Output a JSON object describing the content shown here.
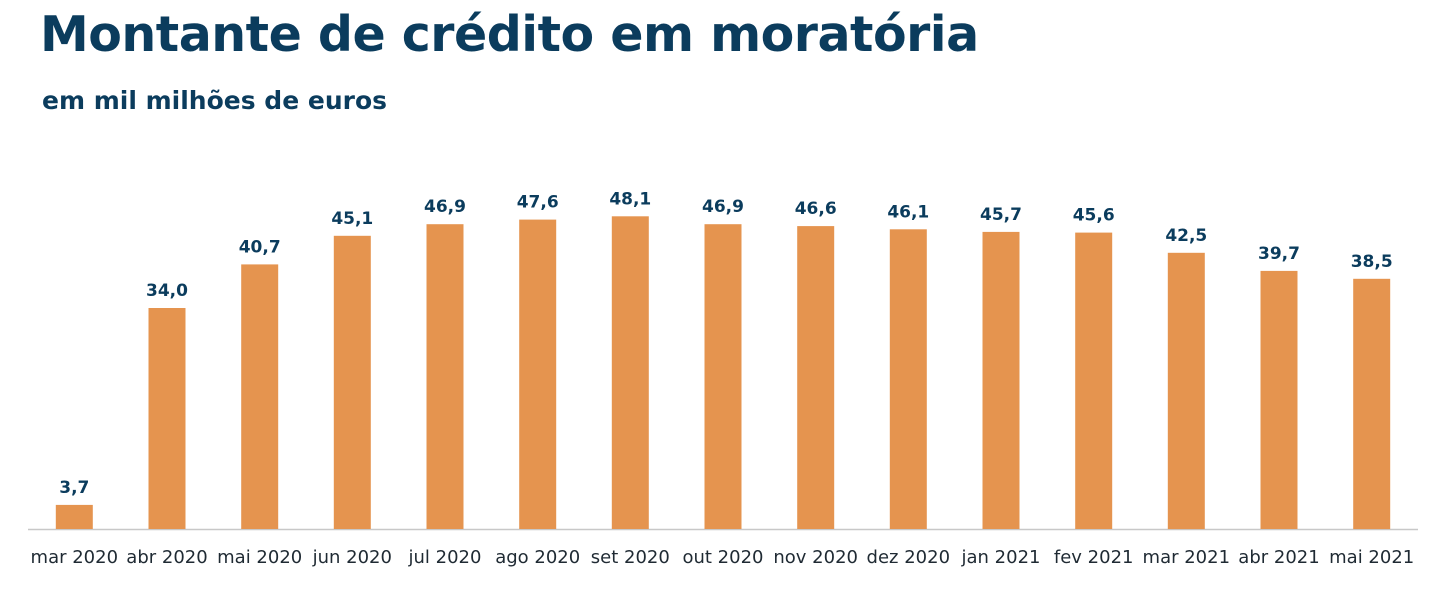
{
  "title": "Montante de crédito em moratória",
  "subtitle": "em mil milhões de euros",
  "colors": {
    "bar": "#e5944f",
    "title": "#0b3c5d",
    "labels": "#0b3c5d",
    "axis": "#c8c8c8"
  },
  "chart_data": {
    "type": "bar",
    "title": "Montante de crédito em moratória",
    "subtitle": "em mil milhões de euros",
    "xlabel": "",
    "ylabel": "",
    "ylim": [
      0,
      50
    ],
    "grid": false,
    "legend": "none",
    "categories": [
      "mar 2020",
      "abr 2020",
      "mai 2020",
      "jun 2020",
      "jul 2020",
      "ago 2020",
      "set 2020",
      "out 2020",
      "nov 2020",
      "dez 2020",
      "jan 2021",
      "fev 2021",
      "mar 2021",
      "abr 2021",
      "mai 2021"
    ],
    "values": [
      3.7,
      34.0,
      40.7,
      45.1,
      46.9,
      47.6,
      48.1,
      46.9,
      46.6,
      46.1,
      45.7,
      45.6,
      42.5,
      39.7,
      38.5
    ],
    "value_labels": [
      "3,7",
      "34,0",
      "40,7",
      "45,1",
      "46,9",
      "47,6",
      "48,1",
      "46,9",
      "46,6",
      "46,1",
      "45,7",
      "45,6",
      "42,5",
      "39,7",
      "38,5"
    ]
  }
}
